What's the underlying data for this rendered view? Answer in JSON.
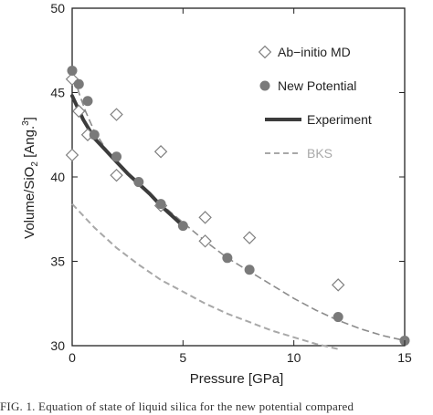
{
  "chart_data": {
    "type": "scatter",
    "xlabel": "Pressure [GPa]",
    "ylabel": "Volume/SiO",
    "ylabel_sub": "2",
    "ylabel_rest": " [Ang.",
    "ylabel_sup": "3",
    "ylabel_end": "]",
    "xlim": [
      0,
      15
    ],
    "ylim": [
      30,
      50
    ],
    "xticks": [
      0,
      5,
      10,
      15
    ],
    "yticks": [
      30,
      35,
      40,
      45,
      50
    ],
    "xtick_labels": [
      "0",
      "5",
      "10",
      "15"
    ],
    "ytick_labels": [
      "30",
      "35",
      "40",
      "45",
      "50"
    ],
    "grid": false,
    "legend_position": "top-right",
    "series": [
      {
        "name": "Ab−initio MD",
        "marker": "open-diamond",
        "color": "#808080",
        "x": [
          0,
          0,
          0.3,
          0.7,
          2,
          2,
          4,
          4,
          6,
          6,
          8,
          12
        ],
        "y": [
          41.3,
          45.8,
          43.9,
          42.5,
          40.1,
          43.7,
          38.3,
          41.5,
          36.2,
          37.6,
          36.4,
          33.6
        ]
      },
      {
        "name": "New Potential",
        "marker": "filled-circle",
        "color": "#7a7a7a",
        "x": [
          0,
          0.3,
          0.7,
          1,
          2,
          3,
          4,
          5,
          7,
          8,
          12,
          15
        ],
        "y": [
          46.3,
          45.5,
          44.5,
          42.5,
          41.2,
          39.7,
          38.4,
          37.1,
          35.2,
          34.5,
          31.7,
          30.3
        ]
      },
      {
        "name": "Experiment",
        "line": "solid-thick",
        "color": "#3c3c3c",
        "x": [
          0,
          0.5,
          1,
          1.5,
          2,
          2.5,
          3,
          3.5,
          4,
          4.5,
          5
        ],
        "y": [
          44.8,
          43.4,
          42.3,
          41.6,
          40.9,
          40.2,
          39.6,
          39.0,
          38.3,
          37.7,
          37.1
        ]
      },
      {
        "name": "BKS",
        "line": "dashed",
        "color": "#a8a8a8",
        "x": [
          0,
          1,
          2,
          3,
          4,
          5,
          6,
          7,
          8,
          9,
          10,
          11,
          12
        ],
        "y": [
          38.4,
          37.0,
          35.8,
          34.8,
          33.9,
          33.2,
          32.5,
          31.9,
          31.4,
          30.9,
          30.5,
          30.1,
          29.8
        ]
      },
      {
        "name": "",
        "line": "dashed-fit",
        "color": "#8c8c8c",
        "x": [
          0,
          0.3,
          0.6,
          1,
          1.5,
          2,
          3,
          4,
          5,
          6,
          7,
          8,
          9,
          10,
          11,
          12,
          13,
          14,
          15
        ],
        "y": [
          46.5,
          45.0,
          43.9,
          42.7,
          41.7,
          40.9,
          39.6,
          38.4,
          37.3,
          36.2,
          35.2,
          34.4,
          33.6,
          32.8,
          32.1,
          31.5,
          31.0,
          30.6,
          30.3
        ]
      }
    ]
  },
  "caption": "FIG. 1.  Equation of state of liquid silica for the new potential compared"
}
